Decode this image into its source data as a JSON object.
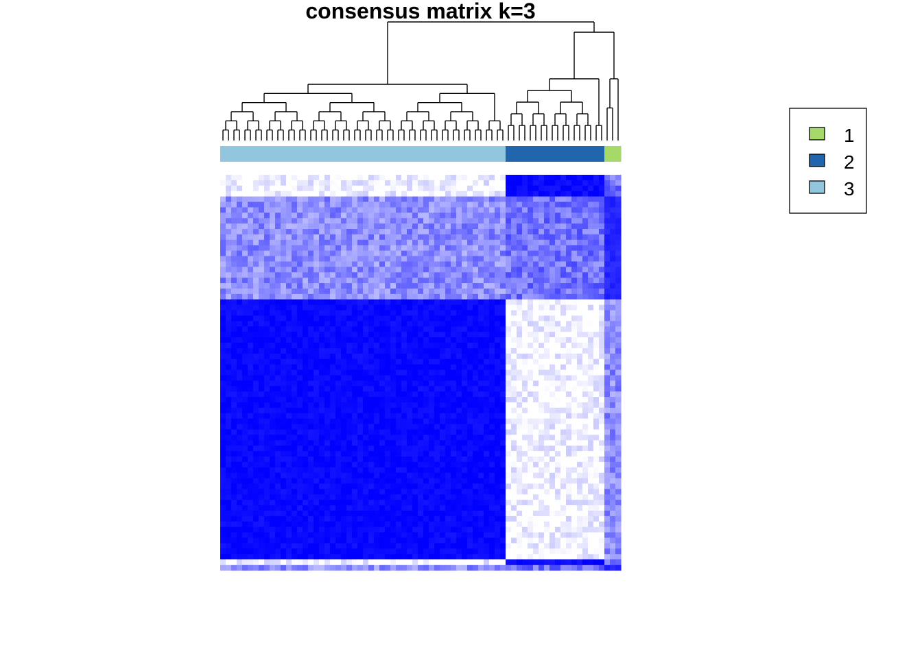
{
  "chart_data": {
    "type": "heatmap",
    "title": "consensus matrix k=3",
    "n_items": 73,
    "value_range": [
      0,
      1
    ],
    "colors": {
      "low": "#ffffff",
      "high": "#0000ff",
      "dendrogram": "#000000"
    },
    "row_order_clusters": [
      2,
      2,
      2,
      2,
      1,
      1,
      1,
      1,
      1,
      1,
      1,
      1,
      1,
      1,
      1,
      1,
      1,
      1,
      1,
      1,
      1,
      1,
      1,
      3,
      3,
      3,
      3,
      3,
      3,
      3,
      3,
      3,
      3,
      3,
      3,
      3,
      3,
      3,
      3,
      3,
      3,
      3,
      3,
      3,
      3,
      3,
      3,
      3,
      3,
      3,
      3,
      3,
      3,
      3,
      3,
      3,
      3,
      3,
      3,
      3,
      3,
      3,
      3,
      3,
      3,
      3,
      3,
      3,
      3,
      3,
      3,
      2,
      1
    ],
    "column_clusters": [
      3,
      3,
      3,
      3,
      3,
      3,
      3,
      3,
      3,
      3,
      3,
      3,
      3,
      3,
      3,
      3,
      3,
      3,
      3,
      3,
      3,
      3,
      3,
      3,
      3,
      3,
      3,
      3,
      3,
      3,
      3,
      3,
      3,
      3,
      3,
      3,
      3,
      3,
      3,
      3,
      3,
      3,
      3,
      3,
      3,
      3,
      3,
      3,
      3,
      3,
      3,
      3,
      2,
      2,
      2,
      2,
      2,
      2,
      2,
      2,
      2,
      2,
      2,
      2,
      2,
      2,
      2,
      2,
      2,
      2,
      1,
      1,
      1
    ],
    "block_consensus": {
      "3-3": 0.97,
      "2-2": 0.96,
      "1-1": 0.85,
      "3-2": 0.03,
      "3-1": 0.45,
      "2-1": 0.55
    },
    "legend": {
      "position": "top-right",
      "entries": [
        {
          "label": "1",
          "color": "#a6d96a"
        },
        {
          "label": "2",
          "color": "#2166ac"
        },
        {
          "label": "3",
          "color": "#92c5de"
        }
      ]
    }
  }
}
